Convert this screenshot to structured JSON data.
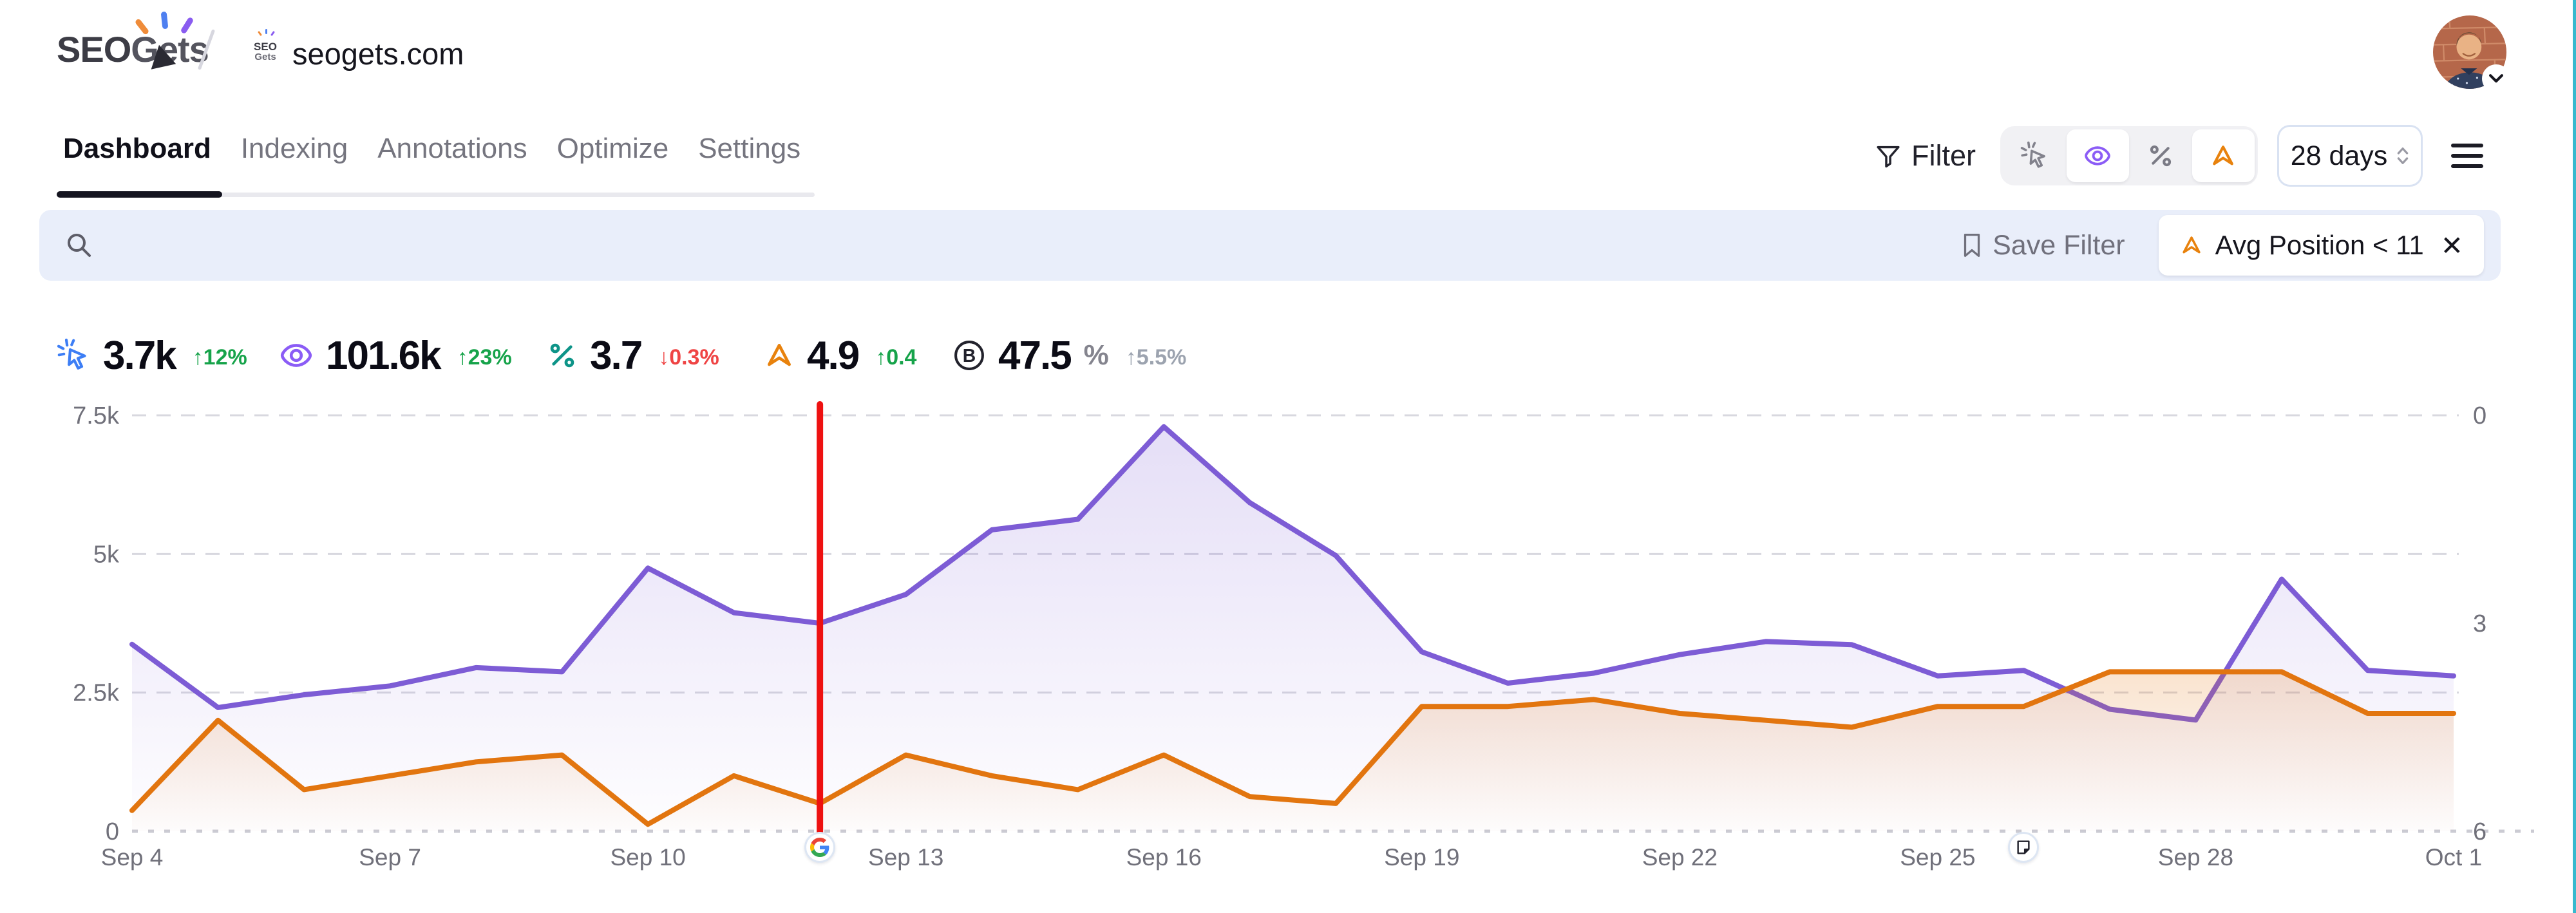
{
  "header": {
    "logo_part1": "SEO",
    "logo_part2": "Gets",
    "favicon_line1": "SEO",
    "favicon_line2": "Gets",
    "site_domain": "seogets.com"
  },
  "nav": {
    "tabs": [
      {
        "label": "Dashboard",
        "active": true
      },
      {
        "label": "Indexing",
        "active": false
      },
      {
        "label": "Annotations",
        "active": false
      },
      {
        "label": "Optimize",
        "active": false
      },
      {
        "label": "Settings",
        "active": false
      }
    ]
  },
  "controls": {
    "filter_label": "Filter",
    "series_toggles": [
      {
        "icon": "click-icon",
        "active": false
      },
      {
        "icon": "eye-icon",
        "active": true,
        "color": "#8b5cf6"
      },
      {
        "icon": "percent-icon",
        "active": false
      },
      {
        "icon": "position-icon",
        "active": true,
        "color": "#e8820d"
      }
    ],
    "date_range": "28 days"
  },
  "filter_bar": {
    "save_filter_label": "Save Filter",
    "chips": [
      {
        "icon": "position-icon",
        "label": "Avg Position < 11",
        "close": "✕"
      }
    ]
  },
  "metrics": [
    {
      "id": "clicks",
      "icon": "click-icon",
      "color": "#3d7ef5",
      "value": "3.7k",
      "change": "↑12%",
      "change_color": "#16a34a"
    },
    {
      "id": "impressions",
      "icon": "eye-icon",
      "color": "#8b5cf6",
      "value": "101.6k",
      "change": "↑23%",
      "change_color": "#16a34a"
    },
    {
      "id": "ctr",
      "icon": "percent-icon",
      "color": "#0d9488",
      "value": "3.7",
      "change": "↓0.3%",
      "change_color": "#ef4444"
    },
    {
      "id": "avg-position",
      "icon": "position-icon",
      "color": "#e8820d",
      "value": "4.9",
      "change": "↑0.4",
      "change_color": "#16a34a"
    },
    {
      "id": "branded",
      "icon": "branded-icon",
      "color": "#22222c",
      "value": "47.5",
      "suffix": "%",
      "change": "↑5.5%",
      "change_color": "#9ca3af"
    }
  ],
  "chart_data": {
    "type": "line",
    "x": [
      "Sep 4",
      "Sep 5",
      "Sep 6",
      "Sep 7",
      "Sep 8",
      "Sep 9",
      "Sep 10",
      "Sep 11",
      "Sep 12",
      "Sep 13",
      "Sep 14",
      "Sep 15",
      "Sep 16",
      "Sep 17",
      "Sep 18",
      "Sep 19",
      "Sep 20",
      "Sep 21",
      "Sep 22",
      "Sep 23",
      "Sep 24",
      "Sep 25",
      "Sep 26",
      "Sep 27",
      "Sep 28",
      "Sep 29",
      "Sep 30",
      "Oct 1"
    ],
    "x_tick_every": 3,
    "series": [
      {
        "name": "Impressions",
        "axis": "left",
        "color": "#7d5cd5",
        "values": [
          3370,
          2230,
          2460,
          2620,
          2950,
          2875,
          4745,
          3940,
          3750,
          4270,
          5435,
          5625,
          7295,
          5925,
          4970,
          3235,
          2670,
          2850,
          3185,
          3420,
          3365,
          2800,
          2900,
          2200,
          2005,
          4545,
          2900,
          2800
        ]
      },
      {
        "name": "Avg Position",
        "axis": "right",
        "color": "#e2750f",
        "values": [
          5.7,
          4.4,
          5.4,
          5.2,
          5.0,
          4.9,
          5.9,
          5.2,
          5.6,
          4.9,
          5.2,
          5.4,
          4.9,
          5.5,
          5.6,
          4.2,
          4.2,
          4.1,
          4.3,
          4.4,
          4.5,
          4.2,
          4.2,
          3.7,
          3.7,
          3.7,
          4.3,
          4.3
        ]
      }
    ],
    "left_axis": {
      "min": 0,
      "max": 7500,
      "ticks": [
        {
          "label": "7.5k",
          "value": 7500
        },
        {
          "label": "5k",
          "value": 5000
        },
        {
          "label": "2.5k",
          "value": 2500
        },
        {
          "label": "0",
          "value": 0
        }
      ]
    },
    "right_axis": {
      "min": 0,
      "max": 6,
      "inverted": true,
      "ticks": [
        {
          "label": "0",
          "value": 0
        },
        {
          "label": "3",
          "value": 3
        },
        {
          "label": "6",
          "value": 6
        }
      ]
    },
    "grid": "dashed-horizontal",
    "legend_position": "none",
    "marker_line": {
      "x": "Sep 12",
      "color": "#ee1111"
    },
    "annotations": [
      {
        "x": "Sep 12",
        "icon": "google-icon"
      },
      {
        "x": "Sep 26",
        "icon": "note-icon"
      }
    ]
  }
}
